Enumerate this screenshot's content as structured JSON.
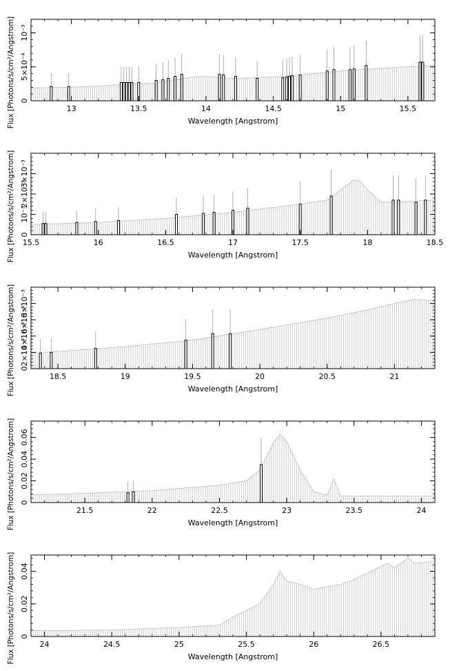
{
  "chart_data": [
    {
      "type": "line",
      "xlabel": "Wavelength [Angstrom]",
      "ylabel": "Flux [Photons/s/cm²/Angstrom]",
      "xlim": [
        12.7,
        15.7
      ],
      "ylim": [
        0,
        0.0012
      ],
      "x_ticks": [
        13,
        13.5,
        14,
        14.5,
        15,
        15.5
      ],
      "x_tick_labels": [
        "13",
        "13.5",
        "14",
        "14.5",
        "15",
        "15.5"
      ],
      "y_ticks": [
        0,
        0.0005,
        0.001
      ],
      "y_tick_labels": [
        "0",
        "5×10⁻⁴",
        "10⁻³"
      ],
      "series": [
        {
          "style": "continuum",
          "x": [
            12.7,
            13.0,
            13.3,
            13.6,
            13.9,
            14.0,
            14.2,
            14.5,
            14.8,
            15.0,
            15.3,
            15.5,
            15.7
          ],
          "y": [
            0.00019,
            0.0002,
            0.00023,
            0.00026,
            0.00035,
            0.00036,
            0.00033,
            0.00035,
            0.0004,
            0.00044,
            0.00048,
            0.0005,
            0.00052
          ]
        },
        {
          "style": "lines",
          "x": [
            12.85,
            12.98,
            13.37,
            13.39,
            13.41,
            13.43,
            13.45,
            13.5,
            13.63,
            13.68,
            13.72,
            13.77,
            13.82,
            14.1,
            14.13,
            14.22,
            14.38,
            14.57,
            14.6,
            14.62,
            14.64,
            14.7,
            14.9,
            14.95,
            15.07,
            15.1,
            15.19,
            15.59,
            15.61
          ],
          "y": [
            0.00021,
            0.00021,
            0.00027,
            0.00027,
            0.00027,
            0.00027,
            0.00027,
            0.00027,
            0.0003,
            0.00031,
            0.00033,
            0.00036,
            0.00039,
            0.00039,
            0.00038,
            0.00036,
            0.00033,
            0.00034,
            0.00035,
            0.00036,
            0.00037,
            0.00038,
            0.00044,
            0.00046,
            0.00046,
            0.00047,
            0.00052,
            0.00057,
            0.00057
          ]
        }
      ]
    },
    {
      "type": "line",
      "xlabel": "Wavelength [Angstrom]",
      "ylabel": "Flux [Photons/s/cm²/Angstrom]",
      "xlim": [
        15.5,
        18.5
      ],
      "ylim": [
        0,
        0.004
      ],
      "x_ticks": [
        15.5,
        16,
        16.5,
        17,
        17.5,
        18,
        18.5
      ],
      "x_tick_labels": [
        "15.5",
        "16",
        "16.5",
        "17",
        "17.5",
        "18",
        "18.5"
      ],
      "y_ticks": [
        0,
        0.001,
        0.002,
        0.003
      ],
      "y_tick_labels": [
        "0",
        "10⁻³",
        "2×10⁻³",
        "3×10⁻³"
      ],
      "series": [
        {
          "style": "continuum",
          "x": [
            15.5,
            16.0,
            16.5,
            17.0,
            17.5,
            17.7,
            17.8,
            17.9,
            17.95,
            18.0,
            18.1,
            18.2,
            18.5
          ],
          "y": [
            0.0005,
            0.0006,
            0.0008,
            0.0011,
            0.0015,
            0.0017,
            0.0022,
            0.0027,
            0.0026,
            0.0022,
            0.0016,
            0.0016,
            0.0017
          ]
        },
        {
          "style": "lines",
          "x": [
            15.59,
            15.61,
            15.84,
            15.98,
            16.15,
            16.58,
            16.78,
            16.86,
            17.0,
            17.11,
            17.5,
            17.73,
            18.19,
            18.23,
            18.36,
            18.43
          ],
          "y": [
            0.00055,
            0.00055,
            0.0006,
            0.00065,
            0.0007,
            0.001,
            0.00105,
            0.0011,
            0.0012,
            0.0013,
            0.0015,
            0.0019,
            0.0017,
            0.0017,
            0.0016,
            0.0017
          ]
        }
      ]
    },
    {
      "type": "line",
      "xlabel": "Wavelength [Angstrom]",
      "ylabel": "Flux [Photons/s/cm²/Angstrom]",
      "xlim": [
        18.3,
        21.3
      ],
      "ylim": [
        0,
        0.01
      ],
      "x_ticks": [
        18.5,
        19,
        19.5,
        20,
        20.5,
        21
      ],
      "x_tick_labels": [
        "18.5",
        "19",
        "19.5",
        "20",
        "20.5",
        "21"
      ],
      "y_ticks": [
        0,
        0.002,
        0.004,
        0.006,
        0.008
      ],
      "y_tick_labels": [
        "0",
        "2×10⁻³",
        "4×10⁻³",
        "6×10⁻³",
        "8×10⁻³"
      ],
      "series": [
        {
          "style": "continuum",
          "x": [
            18.3,
            18.5,
            19.0,
            19.5,
            20.0,
            20.5,
            20.8,
            21.0,
            21.15,
            21.3
          ],
          "y": [
            0.0019,
            0.0021,
            0.0027,
            0.0035,
            0.0048,
            0.0062,
            0.0072,
            0.008,
            0.0085,
            0.0083
          ]
        },
        {
          "style": "lines",
          "x": [
            18.37,
            18.45,
            18.78,
            19.45,
            19.65,
            19.78
          ],
          "y": [
            0.0019,
            0.002,
            0.0025,
            0.0035,
            0.0043,
            0.0043
          ]
        }
      ]
    },
    {
      "type": "line",
      "xlabel": "Wavelength [Angstrom]",
      "ylabel": "Flux [Photons/s/cm²/Angstrom]",
      "xlim": [
        21.1,
        24.1
      ],
      "ylim": [
        0,
        0.075
      ],
      "x_ticks": [
        21.5,
        22,
        22.5,
        23,
        23.5,
        24
      ],
      "x_tick_labels": [
        "21.5",
        "22",
        "22.5",
        "23",
        "23.5",
        "24"
      ],
      "y_ticks": [
        0,
        0.02,
        0.04,
        0.06
      ],
      "y_tick_labels": [
        "0",
        "0.02",
        "0.04",
        "0.06"
      ],
      "series": [
        {
          "style": "continuum",
          "x": [
            21.1,
            21.5,
            22.0,
            22.5,
            22.7,
            22.8,
            22.9,
            22.95,
            23.0,
            23.1,
            23.2,
            23.3,
            23.35,
            23.38,
            23.4,
            24.1
          ],
          "y": [
            0.007,
            0.0085,
            0.011,
            0.016,
            0.02,
            0.03,
            0.055,
            0.063,
            0.056,
            0.03,
            0.01,
            0.007,
            0.022,
            0.012,
            0.006,
            0.006
          ]
        },
        {
          "style": "lines",
          "x": [
            21.82,
            21.86,
            22.81
          ],
          "y": [
            0.009,
            0.01,
            0.035
          ]
        }
      ]
    },
    {
      "type": "line",
      "xlabel": "Wavelength [Angstrom]",
      "ylabel": "Flux [Photons/s/cm²/Angstrom]",
      "xlim": [
        23.9,
        26.9
      ],
      "ylim": [
        0,
        0.05
      ],
      "x_ticks": [
        24,
        24.5,
        25,
        25.5,
        26,
        26.5
      ],
      "x_tick_labels": [
        "24",
        "24.5",
        "25",
        "25.5",
        "26",
        "26.5"
      ],
      "y_ticks": [
        0,
        0.02,
        0.04
      ],
      "y_tick_labels": [
        "0",
        "0.02",
        "0.04"
      ],
      "series": [
        {
          "style": "continuum",
          "x": [
            23.9,
            24.5,
            25.0,
            25.3,
            25.4,
            25.6,
            25.7,
            25.75,
            25.8,
            25.9,
            26.0,
            26.2,
            26.3,
            26.4,
            26.55,
            26.6,
            26.7,
            26.75,
            26.9
          ],
          "y": [
            0.0035,
            0.004,
            0.0055,
            0.007,
            0.012,
            0.02,
            0.032,
            0.04,
            0.034,
            0.032,
            0.029,
            0.032,
            0.035,
            0.039,
            0.045,
            0.042,
            0.048,
            0.045,
            0.046
          ]
        }
      ]
    }
  ]
}
